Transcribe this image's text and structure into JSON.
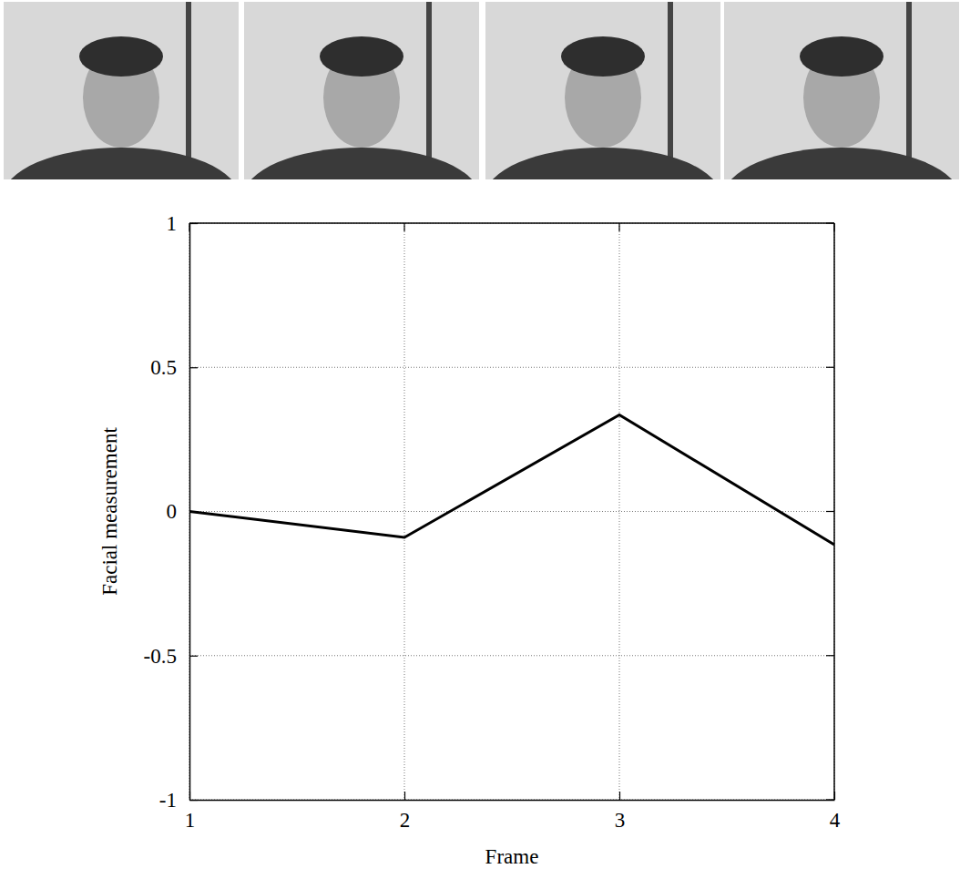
{
  "chart_data": {
    "type": "line",
    "x_label": "Frame",
    "y_label": "Facial measurement",
    "x": [
      1,
      2,
      3,
      4
    ],
    "values": [
      0,
      -0.09,
      0.335,
      -0.115
    ],
    "color": "#000000",
    "xlim": [
      1,
      4
    ],
    "xticks": [
      1,
      2,
      3,
      4
    ],
    "ylim": [
      -1,
      1
    ],
    "yticks": [
      -1,
      -0.5,
      0,
      0.5,
      1
    ],
    "grid": true
  }
}
